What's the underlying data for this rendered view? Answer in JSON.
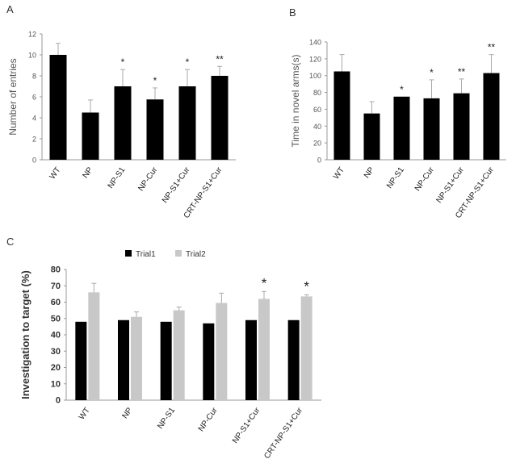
{
  "chart_data": [
    {
      "type": "bar",
      "panel_label": "A",
      "ylabel": "Number of entries",
      "categories": [
        "WT",
        "NP",
        "NP-S1",
        "NP-Cur",
        "NP-S1+Cur",
        "CRT-NP-S1+Cur"
      ],
      "series": [
        {
          "values": [
            10.0,
            4.5,
            7.0,
            5.75,
            7.0,
            8.0
          ],
          "error": [
            1.1,
            1.2,
            1.6,
            1.1,
            1.6,
            0.9
          ]
        }
      ],
      "significance": [
        "",
        "",
        "*",
        "*",
        "*",
        "**"
      ],
      "ylim": [
        0,
        12
      ],
      "yticks": [
        0,
        2,
        4,
        6,
        8,
        10,
        12
      ],
      "colors": {
        "bar": "#000000"
      }
    },
    {
      "type": "bar",
      "panel_label": "B",
      "ylabel": "Time in novel arms(s)",
      "categories": [
        "WT",
        "NP",
        "NP-S1",
        "NP-Cur",
        "NP-S1+Cur",
        "CRT-NP-S1+Cur"
      ],
      "series": [
        {
          "values": [
            105,
            55,
            75,
            73,
            79,
            103
          ],
          "error": [
            20,
            14,
            0,
            22,
            17,
            22
          ]
        }
      ],
      "significance": [
        "",
        "",
        "*",
        "*",
        "**",
        "**"
      ],
      "ylim": [
        0,
        140
      ],
      "yticks": [
        0,
        20,
        40,
        60,
        80,
        100,
        120,
        140
      ],
      "colors": {
        "bar": "#000000"
      }
    },
    {
      "type": "bar",
      "panel_label": "C",
      "ylabel": "Investigation to target (%)",
      "categories": [
        "WT",
        "NP",
        "NP-S1",
        "NP-Cur",
        "NP-S1+Cur",
        "CRT-NP-S1+Cur"
      ],
      "series": [
        {
          "name": "Trial1",
          "color": "#000000",
          "values": [
            48,
            49,
            48,
            47,
            49,
            49
          ],
          "error": [
            0,
            0,
            0,
            0,
            0,
            0
          ]
        },
        {
          "name": "Trial2",
          "color": "#c8c8c8",
          "values": [
            66,
            51,
            55,
            59.5,
            62,
            63.5
          ],
          "error": [
            5.5,
            3,
            2,
            6,
            4.5,
            1
          ]
        }
      ],
      "significance": [
        "",
        "",
        "",
        "",
        "*",
        "*"
      ],
      "ylim": [
        0,
        80
      ],
      "yticks": [
        0,
        10,
        20,
        30,
        40,
        50,
        60,
        70,
        80
      ],
      "legend": "top-center"
    }
  ]
}
